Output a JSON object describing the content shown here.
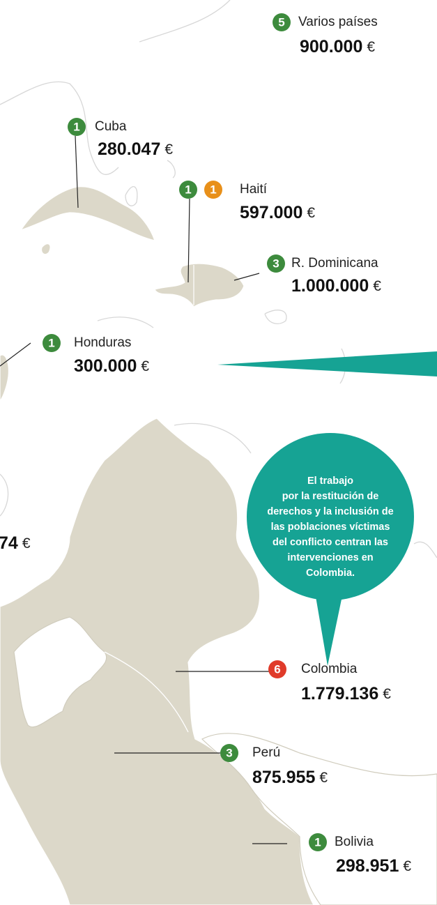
{
  "regions": [
    {
      "badges": [
        {
          "count": "5",
          "color": "#3d8b3d"
        }
      ],
      "name": "Varios países",
      "amount": "900.000",
      "currency": "€"
    },
    {
      "badges": [
        {
          "count": "1",
          "color": "#3d8b3d"
        }
      ],
      "name": "Cuba",
      "amount": "280.047",
      "currency": "€"
    },
    {
      "badges": [
        {
          "count": "1",
          "color": "#3d8b3d"
        },
        {
          "count": "1",
          "color": "#e8901a"
        }
      ],
      "name": "Haití",
      "amount": "597.000",
      "currency": "€"
    },
    {
      "badges": [
        {
          "count": "3",
          "color": "#3d8b3d"
        }
      ],
      "name": "R. Dominicana",
      "amount": "1.000.000",
      "currency": "€"
    },
    {
      "badges": [
        {
          "count": "1",
          "color": "#3d8b3d"
        }
      ],
      "name": "Honduras",
      "amount": "300.000",
      "currency": "€"
    },
    {
      "badges": [
        {
          "count": "6",
          "color": "#e03b2a"
        }
      ],
      "name": "Colombia",
      "amount": "1.779.136",
      "currency": "€"
    },
    {
      "badges": [
        {
          "count": "3",
          "color": "#3d8b3d"
        }
      ],
      "name": "Perú",
      "amount": "875.955",
      "currency": "€"
    },
    {
      "badges": [
        {
          "count": "1",
          "color": "#3d8b3d"
        }
      ],
      "name": "Bolivia",
      "amount": "298.951",
      "currency": "€"
    }
  ],
  "partial": {
    "amount": "74",
    "currency": "€"
  },
  "callout": {
    "color": "#16a394",
    "lines": [
      "El trabajo",
      "por la restitución de",
      "derechos y la inclusión de",
      "las poblaciones víctimas",
      "del conflicto centran las",
      "intervenciones en",
      "Colombia."
    ]
  }
}
